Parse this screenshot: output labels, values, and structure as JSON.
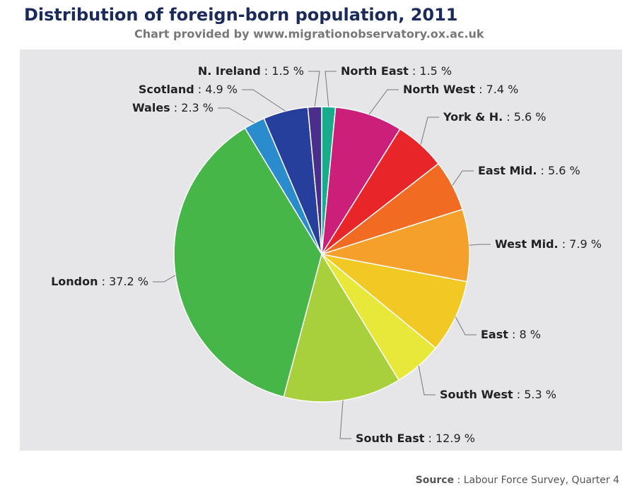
{
  "chart_data": {
    "type": "pie",
    "title": "Distribution of foreign-born population, 2011",
    "subtitle": "Chart provided by www.migrationobservatory.ox.ac.uk",
    "categories": [
      "North East",
      "North West",
      "York & H.",
      "East Mid.",
      "West Mid.",
      "East",
      "South West",
      "South East",
      "London",
      "Wales",
      "Scotland",
      "N. Ireland"
    ],
    "values": [
      1.5,
      7.4,
      5.6,
      5.6,
      7.9,
      8,
      5.3,
      12.9,
      37.2,
      2.3,
      4.9,
      1.5
    ],
    "value_labels": [
      ": 1.5 %",
      ": 7.4 %",
      ": 5.6 %",
      ": 5.6 %",
      ": 7.9 %",
      ": 8 %",
      ": 5.3 %",
      ": 12.9 %",
      ": 37.2 %",
      ": 2.3 %",
      ": 4.9 %",
      ": 1.5 %"
    ],
    "colors": [
      "#1aaa8c",
      "#cc1f7a",
      "#e8262a",
      "#f26b23",
      "#f5a02a",
      "#f2c824",
      "#e8e83a",
      "#a8cf3c",
      "#46b649",
      "#2a8ccc",
      "#263f9c",
      "#4a2f8a"
    ],
    "source_label": "Source",
    "source_text": ": Labour Force Survey, Quarter 4"
  }
}
